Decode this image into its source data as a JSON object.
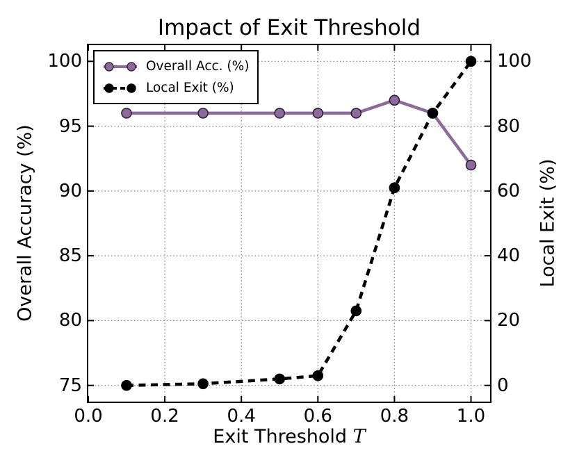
{
  "figure": {
    "title": "Impact of Exit Threshold",
    "xlabel_text": "Exit Threshold",
    "xlabel_var": "T",
    "ylabel_left": "Overall Accuracy (%)",
    "ylabel_right": "Local Exit (%)",
    "background_color": "#ffffff",
    "grid_color": "#7c7c7c"
  },
  "chart_data": {
    "type": "line",
    "title": "Impact of Exit Threshold",
    "xlabel": "Exit Threshold T",
    "ylabel_left": "Overall Accuracy (%)",
    "ylabel_right": "Local Exit (%)",
    "x": [
      0.1,
      0.3,
      0.5,
      0.6,
      0.7,
      0.8,
      0.9,
      1.0
    ],
    "series": [
      {
        "name": "Overall Acc. (%)",
        "axis": "left",
        "color": "#8c6a9b",
        "marker_edge": "#2e2235",
        "style": "solid",
        "marker": "circle",
        "values": [
          96,
          96,
          96,
          96,
          96,
          97,
          96,
          92
        ]
      },
      {
        "name": "Local Exit (%)",
        "axis": "right",
        "color": "#000000",
        "marker_edge": "#000000",
        "style": "dashed",
        "marker": "circle",
        "values": [
          0,
          0.5,
          2,
          3,
          23,
          61,
          84,
          100
        ]
      }
    ],
    "xlim": [
      0,
      1.05
    ],
    "ylim_left": [
      73.75,
      101.25
    ],
    "ylim_right": [
      -5,
      105
    ],
    "xticks": [
      0.0,
      0.2,
      0.4,
      0.6,
      0.8,
      1.0
    ],
    "yticks_left": [
      100,
      95,
      90,
      85,
      80,
      75
    ],
    "yticks_right": [
      100,
      80,
      60,
      40,
      20,
      0
    ],
    "grid": true,
    "grid_style": "dotted",
    "legend_position": "upper left"
  },
  "axes": {
    "xtick_labels": [
      "0.0",
      "0.2",
      "0.4",
      "0.6",
      "0.8",
      "1.0"
    ],
    "ytick_left_labels": [
      "100",
      "95",
      "90",
      "85",
      "80",
      "75"
    ],
    "ytick_right_labels": [
      "100",
      "80",
      "60",
      "40",
      "20",
      "0"
    ]
  },
  "legend": {
    "items": [
      {
        "label": "Overall Acc. (%)"
      },
      {
        "label": "Local Exit (%)"
      }
    ]
  }
}
